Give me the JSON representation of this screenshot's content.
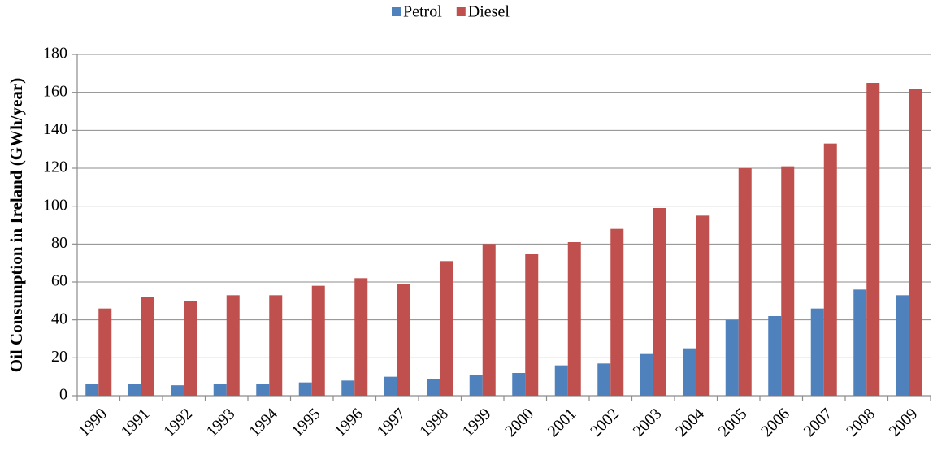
{
  "chart_data": {
    "type": "bar",
    "y_label": "Oil Consumption in Ireland (GWh/year)",
    "categories": [
      "1990",
      "1991",
      "1992",
      "1993",
      "1994",
      "1995",
      "1996",
      "1997",
      "1998",
      "1999",
      "2000",
      "2001",
      "2002",
      "2003",
      "2004",
      "2005",
      "2006",
      "2007",
      "2008",
      "2009"
    ],
    "series": [
      {
        "name": "Petrol",
        "color": "#4f81bd",
        "values": [
          6,
          6,
          5.5,
          6,
          6,
          7,
          8,
          10,
          9,
          11,
          12,
          16,
          17,
          22,
          25,
          40,
          42,
          46,
          56,
          53
        ]
      },
      {
        "name": "Diesel",
        "color": "#c0504d",
        "values": [
          46,
          52,
          50,
          53,
          53,
          58,
          62,
          59,
          71,
          80,
          75,
          81,
          88,
          99,
          95,
          120,
          121,
          133,
          165,
          162
        ]
      }
    ],
    "ylim": [
      0,
      180
    ],
    "yticks": [
      0,
      20,
      40,
      60,
      80,
      100,
      120,
      140,
      160,
      180
    ],
    "grid": true,
    "legend": "top"
  }
}
